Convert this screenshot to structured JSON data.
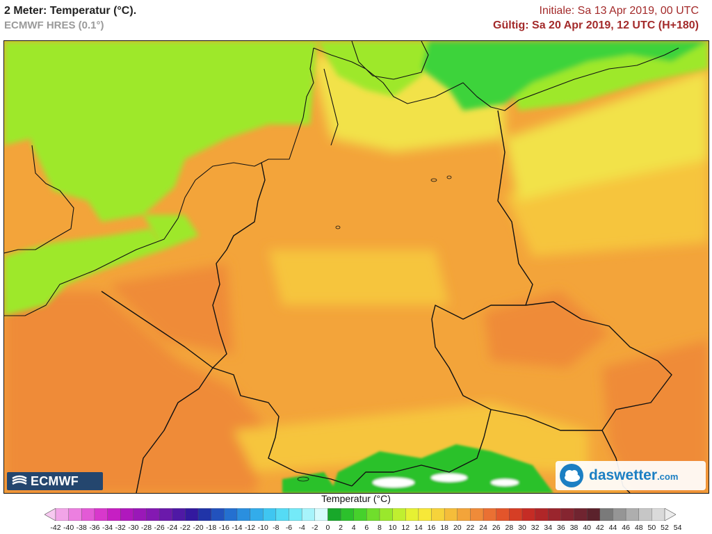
{
  "header": {
    "title": "2 Meter: Temperatur (°C).",
    "subtitle": "ECMWF HRES (0.1°)",
    "initial": "Initiale: Sa 13 Apr 2019, 00 UTC",
    "valid": "Gültig: Sa 20 Apr 2019, 12 UTC (H+180)"
  },
  "logos": {
    "ecmwf": "ECMWF",
    "daswetter": "daswetter",
    "daswetter_suffix": ".com"
  },
  "legend": {
    "title": "Temperatur (°C)",
    "ticks": [
      "-42",
      "-40",
      "-38",
      "-36",
      "-34",
      "-32",
      "-30",
      "-28",
      "-26",
      "-24",
      "-22",
      "-20",
      "-18",
      "-16",
      "-14",
      "-12",
      "-10",
      "-8",
      "-6",
      "-4",
      "-2",
      "0",
      "2",
      "4",
      "6",
      "8",
      "10",
      "12",
      "14",
      "16",
      "18",
      "20",
      "22",
      "24",
      "26",
      "28",
      "30",
      "32",
      "34",
      "36",
      "38",
      "40",
      "42",
      "44",
      "46",
      "48",
      "50",
      "52",
      "54"
    ],
    "colors": [
      "#f7c8f0",
      "#f2a4e8",
      "#ec7fe0",
      "#e35ad6",
      "#d838cc",
      "#c61fc3",
      "#b018bd",
      "#9a18b8",
      "#8419b2",
      "#6b19ab",
      "#4f19a5",
      "#33199f",
      "#2034a8",
      "#2252bd",
      "#2470d0",
      "#2a8fdf",
      "#33acea",
      "#3fc6f1",
      "#55dbf5",
      "#74eaf8",
      "#a7f4fb",
      "#d6fbfd",
      "#18a82a",
      "#2cc12c",
      "#46d12c",
      "#70de2c",
      "#9ae82c",
      "#c0ef30",
      "#e6f133",
      "#f7e838",
      "#f6d33b",
      "#f5bd3a",
      "#f3a43a",
      "#ef8b39",
      "#ea7033",
      "#e3552b",
      "#d63e25",
      "#c52c25",
      "#b02628",
      "#9a252d",
      "#852530",
      "#702430",
      "#5b222c",
      "#7a7a7a",
      "#959595",
      "#aeaeae",
      "#c6c6c6",
      "#dadada",
      "#ececec"
    ]
  },
  "map_palette": {
    "sea_north": "#9ee82c",
    "sea_baltic": "#3dd33b",
    "land_base": "#f3a43a",
    "land_warm": "#ef8b39",
    "land_cool": "#f6c53c",
    "land_yellow": "#f2e24a",
    "alps_green": "#2cc12c",
    "alps_white": "#ffffff"
  }
}
